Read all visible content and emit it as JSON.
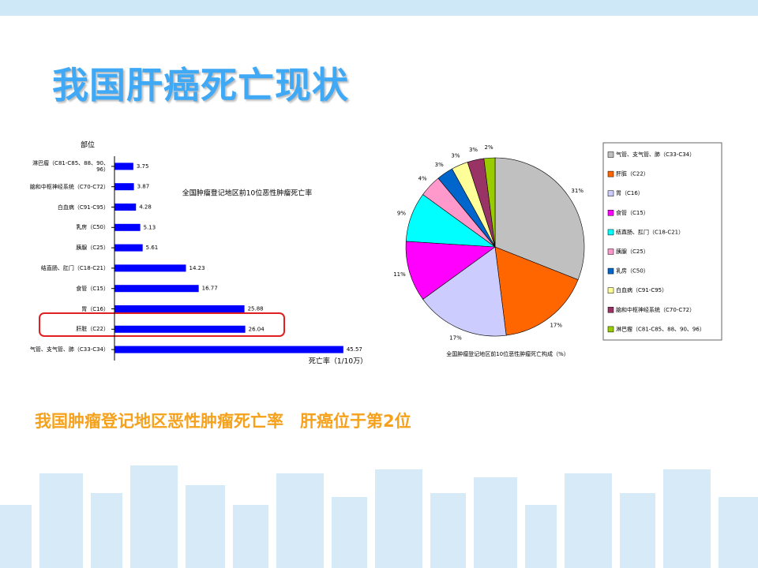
{
  "title": "我国肝癌死亡现状",
  "caption": "我国肿瘤登记地区恶性肿瘤死亡率　肝癌位于第2位",
  "chart_data": [
    {
      "type": "bar",
      "orientation": "horizontal",
      "title": "全国肿瘤登记地区前10位恶性肿瘤死亡率",
      "y_label": "部位",
      "x_label": "死亡率（1/10万）",
      "categories": [
        "淋巴瘤（C81-C85、88、90、96）",
        "脑和中枢神经系统（C70-C72）",
        "白血病（C91-C95）",
        "乳房（C50）",
        "胰腺（C25）",
        "结直肠、肛门（C18-C21）",
        "食管（C15）",
        "胃（C16）",
        "肝脏（C22）",
        "气管、支气管、肺（C33-C34）"
      ],
      "values": [
        3.75,
        3.87,
        4.28,
        5.13,
        5.61,
        14.23,
        16.77,
        25.88,
        26.04,
        45.57
      ],
      "color": "#0000ff",
      "xlim": [
        0,
        50
      ]
    },
    {
      "type": "pie",
      "title": "全国肿瘤登记地区前10位恶性肿瘤死亡构成（%）",
      "categories": [
        "气管、支气管、肺（C33-C34）",
        "肝脏（C22）",
        "胃（C16）",
        "食管（C15）",
        "结直肠、肛门（C18-C21）",
        "胰腺（C25）",
        "乳房（C50）",
        "白血病（C91-C95）",
        "脑和中枢神经系统（C70-C72）",
        "淋巴瘤（C81-C85、88、90、96）"
      ],
      "values": [
        31,
        17,
        17,
        11,
        9,
        4,
        3,
        3,
        3,
        2
      ],
      "value_labels": [
        "31%",
        "17%",
        "17%",
        "11%",
        "9%",
        "4%",
        "3%",
        "3%",
        "3%",
        "2%"
      ],
      "colors": [
        "#c0c0c0",
        "#ff6600",
        "#ccccff",
        "#ff00ff",
        "#00ffff",
        "#ff99cc",
        "#0066cc",
        "#ffff99",
        "#993366",
        "#99cc00"
      ],
      "legend": "right"
    }
  ]
}
